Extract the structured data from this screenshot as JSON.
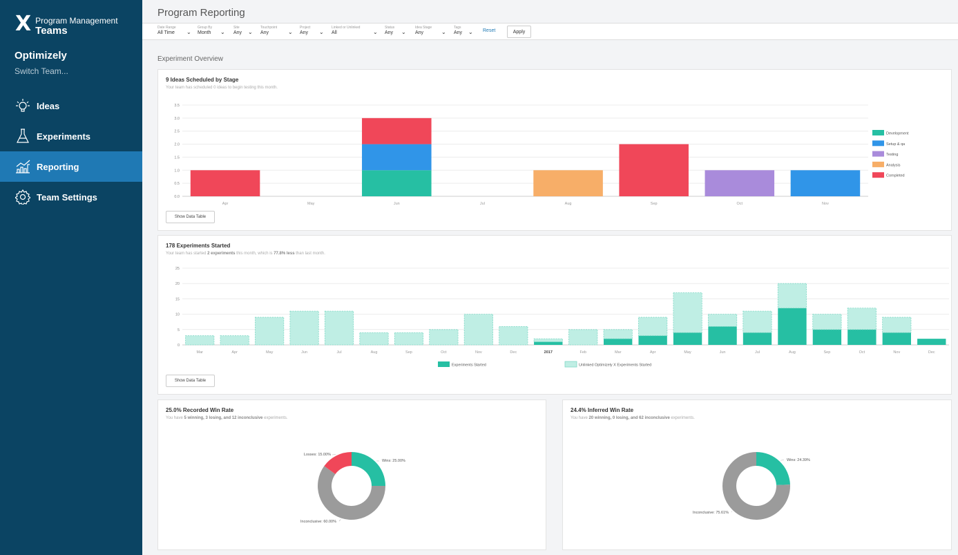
{
  "brand": {
    "x": "X",
    "sub": "Program Management",
    "main": "Teams"
  },
  "team": {
    "name": "Optimizely",
    "switch": "Switch Team..."
  },
  "nav": [
    {
      "label": "Ideas",
      "icon": "lightbulb-icon"
    },
    {
      "label": "Experiments",
      "icon": "flask-icon"
    },
    {
      "label": "Reporting",
      "icon": "chart-icon",
      "active": true
    },
    {
      "label": "Team Settings",
      "icon": "gear-icon"
    }
  ],
  "page": {
    "title": "Program Reporting",
    "section": "Experiment Overview"
  },
  "filters": [
    {
      "label": "Date Range",
      "value": "All Time"
    },
    {
      "label": "Group By",
      "value": "Month"
    },
    {
      "label": "Site",
      "value": "Any"
    },
    {
      "label": "Touchpoint",
      "value": "Any"
    },
    {
      "label": "Project",
      "value": "Any"
    },
    {
      "label": "Linked or Unlinked",
      "value": "All"
    },
    {
      "label": "Status",
      "value": "Any"
    },
    {
      "label": "Idea Stage",
      "value": "Any"
    },
    {
      "label": "Tags",
      "value": "Any"
    }
  ],
  "filter_actions": {
    "reset": "Reset",
    "apply": "Apply"
  },
  "show_data_table": "Show Data Table",
  "cards": {
    "ideas": {
      "title": "9 Ideas Scheduled by Stage",
      "subtitle": "Your team has scheduled 0 ideas to begin testing this month."
    },
    "experiments": {
      "title": "178 Experiments Started",
      "sub_pre": "Your team has started ",
      "sub_b1": "2 experiments",
      "sub_mid": " this month, which is ",
      "sub_b2": "77.8% less",
      "sub_post": " than last month."
    },
    "recorded": {
      "title": "25.0% Recorded Win Rate",
      "sub_pre": "You have ",
      "sub_b": "5 winning, 3 losing, and 12 inconclusive",
      "sub_post": " experiments."
    },
    "inferred": {
      "title": "24.4% Inferred Win Rate",
      "sub_pre": "You have ",
      "sub_b": "20 winning, 0 losing, and 62 inconclusive",
      "sub_post": " experiments."
    }
  },
  "chart_data": [
    {
      "type": "bar",
      "stacked": true,
      "title": "9 Ideas Scheduled by Stage",
      "categories": [
        "Apr",
        "May",
        "Jun",
        "Jul",
        "Aug",
        "Sep",
        "Oct",
        "Nov"
      ],
      "ylim": [
        0,
        3.5
      ],
      "yticks": [
        "0.0",
        "0.5",
        "1.0",
        "1.5",
        "2.0",
        "2.5",
        "3.0",
        "3.5"
      ],
      "legend_position": "right",
      "series": [
        {
          "name": "Development",
          "color": "#26bfa3",
          "values": [
            0,
            0,
            1,
            0,
            0,
            0,
            0,
            0
          ]
        },
        {
          "name": "Setup & qa",
          "color": "#3095e8",
          "values": [
            0,
            0,
            1,
            0,
            0,
            0,
            0,
            1
          ]
        },
        {
          "name": "Testing",
          "color": "#a98bdb",
          "values": [
            0,
            0,
            0,
            0,
            0,
            0,
            1,
            0
          ]
        },
        {
          "name": "Analysis",
          "color": "#f7ae68",
          "values": [
            0,
            0,
            0,
            0,
            1,
            0,
            0,
            0
          ]
        },
        {
          "name": "Completed",
          "color": "#f04759",
          "values": [
            1,
            0,
            1,
            0,
            0,
            2,
            0,
            0
          ]
        }
      ]
    },
    {
      "type": "bar",
      "stacked": true,
      "title": "178 Experiments Started",
      "categories": [
        "Mar",
        "Apr",
        "May",
        "Jun",
        "Jul",
        "Aug",
        "Sep",
        "Oct",
        "Nov",
        "Dec",
        "2017",
        "Feb",
        "Mar",
        "Apr",
        "May",
        "Jun",
        "Jul",
        "Aug",
        "Sep",
        "Oct",
        "Nov",
        "Dec"
      ],
      "ylim": [
        0,
        25
      ],
      "yticks": [
        "0",
        "5",
        "10",
        "15",
        "20",
        "25"
      ],
      "legend_position": "bottom",
      "series": [
        {
          "name": "Experiments Started",
          "color": "#26bfa3",
          "values": [
            0,
            0,
            0,
            0,
            0,
            0,
            0,
            0,
            0,
            0,
            1,
            0,
            2,
            3,
            4,
            6,
            4,
            12,
            5,
            5,
            4,
            2
          ]
        },
        {
          "name": "Unlinked Optimizely X Experiments Started",
          "color": "#bfeee4",
          "values": [
            3,
            3,
            9,
            11,
            11,
            4,
            4,
            5,
            10,
            6,
            1,
            5,
            3,
            6,
            13,
            4,
            7,
            8,
            5,
            7,
            5,
            0
          ]
        }
      ]
    },
    {
      "type": "pie",
      "title": "25.0% Recorded Win Rate",
      "slices": [
        {
          "label": "Wins: 25.00%",
          "value": 25,
          "color": "#26bfa3"
        },
        {
          "label": "Inconclusive: 60.00%",
          "value": 60,
          "color": "#9b9b9b"
        },
        {
          "label": "Losses: 15.00%",
          "value": 15,
          "color": "#f04759"
        }
      ]
    },
    {
      "type": "pie",
      "title": "24.4% Inferred Win Rate",
      "slices": [
        {
          "label": "Wins: 24.39%",
          "value": 24.39,
          "color": "#26bfa3"
        },
        {
          "label": "Inconclusive: 75.61%",
          "value": 75.61,
          "color": "#9b9b9b"
        }
      ]
    }
  ]
}
